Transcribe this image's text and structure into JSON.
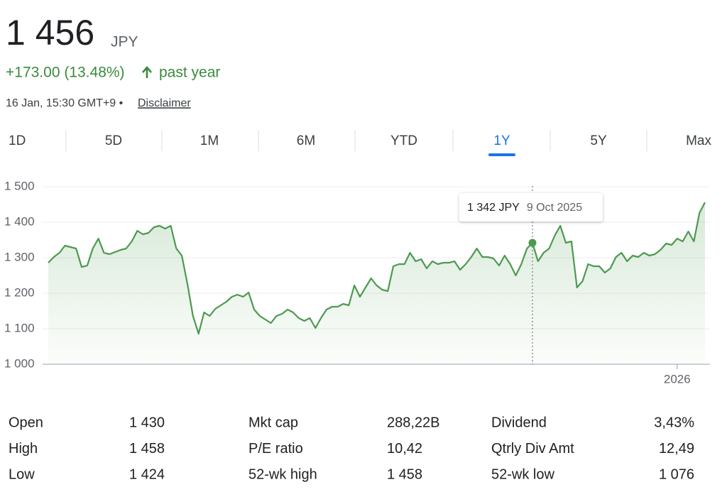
{
  "header": {
    "price": "1 456",
    "currency": "JPY",
    "change": "+173.00 (13.48%)",
    "period": "past year",
    "timestamp": "16 Jan, 15:30 GMT+9 •",
    "disclaimer": "Disclaimer"
  },
  "tabs": [
    "1D",
    "5D",
    "1M",
    "6M",
    "YTD",
    "1Y",
    "5Y",
    "Max"
  ],
  "active_tab": "1Y",
  "chart_data": {
    "type": "line",
    "categories": [
      null,
      null,
      null,
      null,
      null,
      null,
      null,
      null,
      null,
      null,
      null,
      null,
      null,
      null,
      null,
      null,
      null,
      null,
      null,
      null,
      null,
      null,
      null,
      null,
      null,
      null,
      null,
      null,
      null,
      null,
      null,
      null,
      null,
      null,
      null,
      null,
      null,
      null,
      null,
      null,
      null,
      null,
      null,
      null,
      null,
      null,
      null,
      null,
      null,
      null,
      null,
      null,
      null,
      null,
      null,
      null,
      null,
      null,
      null,
      null,
      null,
      null,
      null,
      null,
      null,
      null,
      null,
      null,
      null,
      null,
      null,
      null,
      null,
      null,
      null,
      null,
      null,
      null,
      null,
      null,
      null,
      null,
      null,
      null,
      null,
      null,
      null,
      null,
      null,
      null,
      null,
      null,
      null,
      null,
      null,
      null,
      null,
      null,
      null,
      null,
      null,
      null,
      null,
      null,
      null,
      null,
      null,
      null,
      null,
      null,
      null,
      null,
      null,
      "2026",
      null,
      null,
      null,
      null,
      null
    ],
    "series": [
      {
        "name": "JPY",
        "color": "#4c9a4f",
        "values": [
          1286,
          1302,
          1314,
          1334,
          1330,
          1326,
          1274,
          1278,
          1326,
          1354,
          1314,
          1310,
          1316,
          1322,
          1326,
          1346,
          1376,
          1366,
          1370,
          1386,
          1390,
          1382,
          1390,
          1326,
          1306,
          1226,
          1136,
          1086,
          1146,
          1136,
          1156,
          1166,
          1176,
          1190,
          1196,
          1190,
          1202,
          1154,
          1136,
          1126,
          1116,
          1136,
          1142,
          1154,
          1146,
          1130,
          1122,
          1130,
          1102,
          1130,
          1154,
          1162,
          1162,
          1170,
          1166,
          1222,
          1190,
          1216,
          1242,
          1222,
          1210,
          1206,
          1276,
          1282,
          1282,
          1314,
          1290,
          1296,
          1270,
          1290,
          1282,
          1286,
          1286,
          1290,
          1266,
          1282,
          1302,
          1326,
          1302,
          1302,
          1298,
          1278,
          1306,
          1282,
          1250,
          1282,
          1326,
          1342,
          1290,
          1314,
          1326,
          1362,
          1390,
          1342,
          1346,
          1216,
          1234,
          1282,
          1276,
          1276,
          1258,
          1270,
          1302,
          1314,
          1290,
          1306,
          1302,
          1314,
          1306,
          1310,
          1322,
          1340,
          1336,
          1354,
          1346,
          1374,
          1346,
          1426,
          1456
        ]
      }
    ],
    "ylim": [
      1000,
      1500
    ],
    "yticks": [
      {
        "value": 1000,
        "label": "1 000"
      },
      {
        "value": 1100,
        "label": "1 100"
      },
      {
        "value": 1200,
        "label": "1 200"
      },
      {
        "value": 1300,
        "label": "1 300"
      },
      {
        "value": 1400,
        "label": "1 400"
      },
      {
        "value": 1500,
        "label": "1 500"
      }
    ],
    "grid": true,
    "tooltip": {
      "value": 1342,
      "label": "1 342 JPY",
      "date": "9 Oct 2025"
    }
  },
  "stats": [
    [
      [
        "Open",
        "1 430"
      ],
      [
        "Mkt cap",
        "288,22B"
      ],
      [
        "Dividend",
        "3,43%"
      ]
    ],
    [
      [
        "High",
        "1 458"
      ],
      [
        "P/E ratio",
        "10,42"
      ],
      [
        "Qtrly Div Amt",
        "12,49"
      ]
    ],
    [
      [
        "Low",
        "1 424"
      ],
      [
        "52-wk high",
        "1 458"
      ],
      [
        "52-wk low",
        "1 076"
      ]
    ]
  ]
}
